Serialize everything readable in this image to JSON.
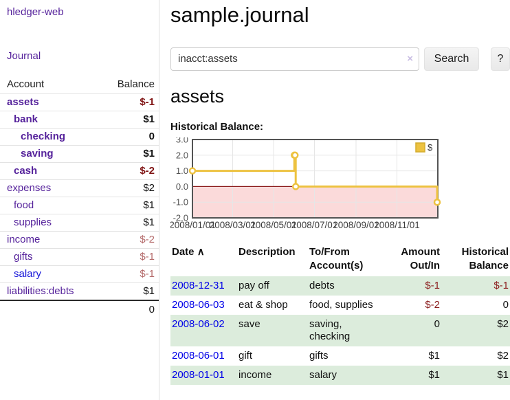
{
  "app": {
    "brand": "hledger-web",
    "nav": {
      "journal": "Journal"
    }
  },
  "sidebar": {
    "accounts_header": {
      "account": "Account",
      "balance": "Balance"
    },
    "accounts": [
      {
        "name": "assets",
        "balance": "$-1",
        "level": 0,
        "bold": true,
        "blue": false
      },
      {
        "name": "bank",
        "balance": "$1",
        "level": 1,
        "bold": true,
        "blue": false
      },
      {
        "name": "checking",
        "balance": "0",
        "level": 2,
        "bold": true,
        "blue": false
      },
      {
        "name": "saving",
        "balance": "$1",
        "level": 2,
        "bold": true,
        "blue": false
      },
      {
        "name": "cash",
        "balance": "$-2",
        "level": 1,
        "bold": true,
        "blue": false
      },
      {
        "name": "expenses",
        "balance": "$2",
        "level": 0,
        "bold": false,
        "blue": false
      },
      {
        "name": "food",
        "balance": "$1",
        "level": 1,
        "bold": false,
        "blue": false
      },
      {
        "name": "supplies",
        "balance": "$1",
        "level": 1,
        "bold": false,
        "blue": false
      },
      {
        "name": "income",
        "balance": "$-2",
        "level": 0,
        "bold": false,
        "blue": false
      },
      {
        "name": "gifts",
        "balance": "$-1",
        "level": 1,
        "bold": false,
        "blue": false
      },
      {
        "name": "salary",
        "balance": "$-1",
        "level": 1,
        "bold": false,
        "blue": true
      },
      {
        "name": "liabilities:debts",
        "balance": "$1",
        "level": 0,
        "bold": false,
        "blue": false
      }
    ],
    "total": "0"
  },
  "main": {
    "title": "sample.journal",
    "search": {
      "value": "inacct:assets",
      "clear_icon": "×",
      "search_button": "Search",
      "help_button": "?"
    },
    "account_heading": "assets",
    "chart_label": "Historical Balance:"
  },
  "chart_data": {
    "type": "line",
    "title": "Historical Balance",
    "step": true,
    "x": [
      "2008-01-01",
      "2008-06-01",
      "2008-06-02",
      "2008-06-03",
      "2008-12-31"
    ],
    "series": [
      {
        "name": "$",
        "color": "#EDC240",
        "values": [
          1,
          2,
          2,
          0,
          -1
        ]
      }
    ],
    "xlim": [
      "2008-01-01",
      "2009-01-01"
    ],
    "ylim": [
      -2,
      3
    ],
    "y_ticks": [
      "3.0",
      "2.0",
      "1.0",
      "0.0",
      "-1.0",
      "-2.0"
    ],
    "x_ticks": [
      {
        "date": "2008-01-01",
        "label": "2008/01/01"
      },
      {
        "date": "2008-03-01",
        "label": "2008/03/01"
      },
      {
        "date": "2008-05-01",
        "label": "2008/05/01"
      },
      {
        "date": "2008-07-01",
        "label": "2008/07/01"
      },
      {
        "date": "2008-09-01",
        "label": "2008/09/01"
      },
      {
        "date": "2008-11-01",
        "label": "2008/11/01"
      }
    ],
    "grid": true,
    "legend": {
      "label": "$",
      "position": "top-right"
    },
    "negative_region_color": "#fbdada",
    "zero_line_color": "#8b1a1a"
  },
  "register": {
    "sort_asc_icon": "∧",
    "columns": [
      {
        "key": "date",
        "lines": [
          "Date"
        ],
        "align": "left",
        "sortable": true
      },
      {
        "key": "description",
        "lines": [
          "Description"
        ],
        "align": "left",
        "sortable": false
      },
      {
        "key": "accounts",
        "lines": [
          "To/From",
          "Account(s)"
        ],
        "align": "left",
        "sortable": false
      },
      {
        "key": "amount",
        "lines": [
          "Amount",
          "Out/In"
        ],
        "align": "right",
        "sortable": false
      },
      {
        "key": "balance",
        "lines": [
          "Historical",
          "Balance"
        ],
        "align": "right",
        "sortable": false
      }
    ],
    "rows": [
      {
        "date": "2008-12-31",
        "description": "pay off",
        "accounts": "debts",
        "amount": "$-1",
        "balance": "$-1",
        "shaded": true
      },
      {
        "date": "2008-06-03",
        "description": "eat & shop",
        "accounts": "food, supplies",
        "amount": "$-2",
        "balance": "0",
        "shaded": false
      },
      {
        "date": "2008-06-02",
        "description": "save",
        "accounts": "saving, checking",
        "amount": "0",
        "balance": "$2",
        "shaded": true
      },
      {
        "date": "2008-06-01",
        "description": "gift",
        "accounts": "gifts",
        "amount": "$1",
        "balance": "$2",
        "shaded": false
      },
      {
        "date": "2008-01-01",
        "description": "income",
        "accounts": "salary",
        "amount": "$1",
        "balance": "$1",
        "shaded": true
      }
    ]
  },
  "colors": {
    "link_purple": "#55229b",
    "link_blue": "#1414d8",
    "date_link_blue": "#0000e8",
    "negative_strong": "#801414",
    "negative_soft": "#b46a6a",
    "row_shaded_green": "#dcecdc",
    "chart_line_gold": "#EDC240",
    "chart_negative_pink": "#fbdada",
    "chart_zero_line": "#8b1a1a",
    "chart_border": "#545454",
    "chart_grid": "#e6e6e6"
  }
}
